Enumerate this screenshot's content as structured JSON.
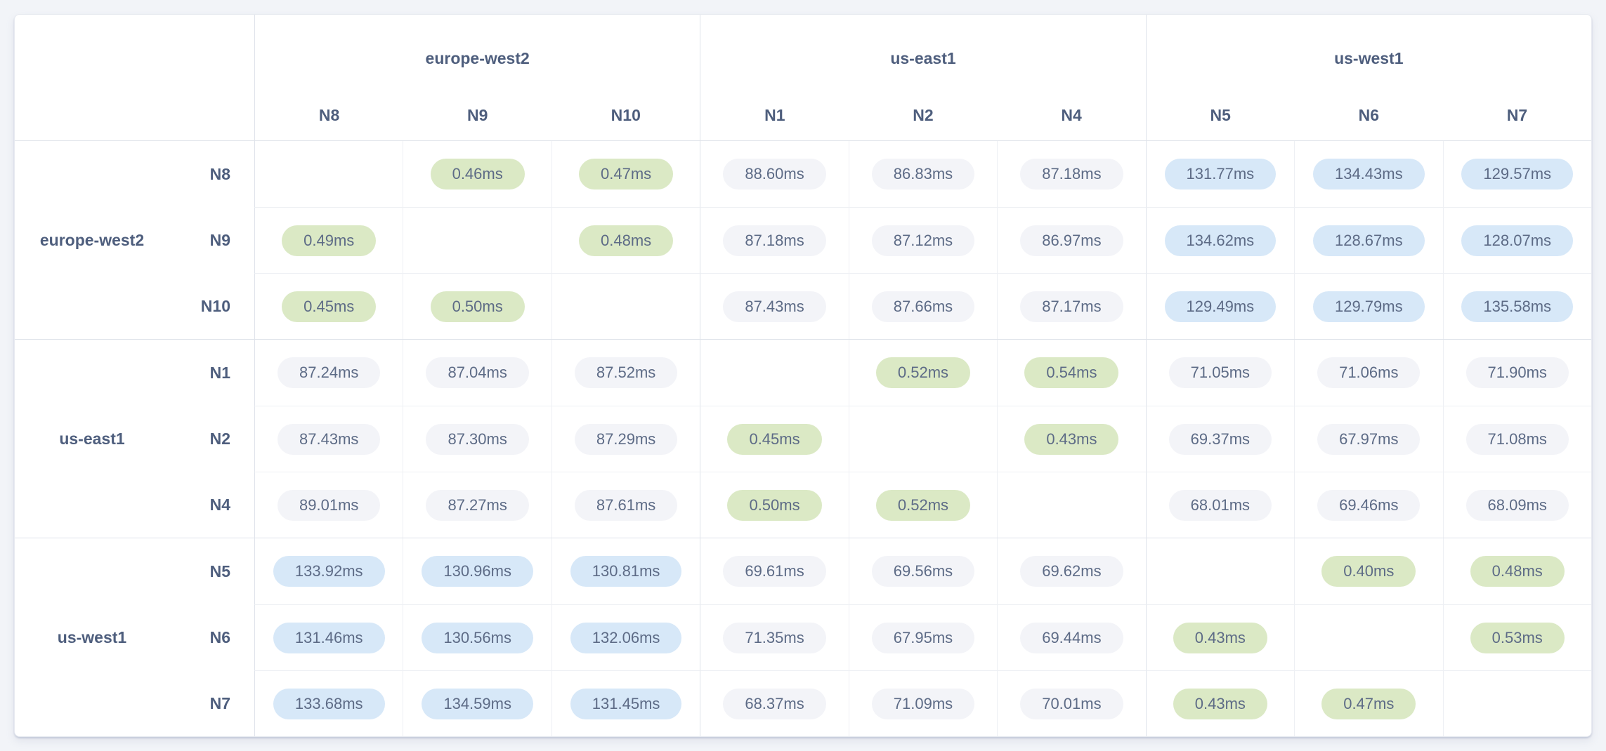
{
  "colors": {
    "local_pill": "#dbe9c5",
    "standard_pill": "#f3f4f8",
    "high_pill": "#d7e8f8",
    "value_text": "#5d6b86",
    "label_text": "#4e5e7d",
    "page_background": "#f2f4f8",
    "grid_line": "#eef0f4",
    "group_line": "#dfe3ea"
  },
  "columns": {
    "groups": [
      {
        "region": "europe-west2",
        "nodes": [
          "N8",
          "N9",
          "N10"
        ]
      },
      {
        "region": "us-east1",
        "nodes": [
          "N1",
          "N2",
          "N4"
        ]
      },
      {
        "region": "us-west1",
        "nodes": [
          "N5",
          "N6",
          "N7"
        ]
      }
    ]
  },
  "row_groups": [
    {
      "region": "europe-west2",
      "rows": [
        {
          "node": "N8",
          "cells": [
            null,
            {
              "text": "0.46ms",
              "level": "local"
            },
            {
              "text": "0.47ms",
              "level": "local"
            },
            {
              "text": "88.60ms",
              "level": "standard"
            },
            {
              "text": "86.83ms",
              "level": "standard"
            },
            {
              "text": "87.18ms",
              "level": "standard"
            },
            {
              "text": "131.77ms",
              "level": "high"
            },
            {
              "text": "134.43ms",
              "level": "high"
            },
            {
              "text": "129.57ms",
              "level": "high"
            }
          ]
        },
        {
          "node": "N9",
          "cells": [
            {
              "text": "0.49ms",
              "level": "local"
            },
            null,
            {
              "text": "0.48ms",
              "level": "local"
            },
            {
              "text": "87.18ms",
              "level": "standard"
            },
            {
              "text": "87.12ms",
              "level": "standard"
            },
            {
              "text": "86.97ms",
              "level": "standard"
            },
            {
              "text": "134.62ms",
              "level": "high"
            },
            {
              "text": "128.67ms",
              "level": "high"
            },
            {
              "text": "128.07ms",
              "level": "high"
            }
          ]
        },
        {
          "node": "N10",
          "cells": [
            {
              "text": "0.45ms",
              "level": "local"
            },
            {
              "text": "0.50ms",
              "level": "local"
            },
            null,
            {
              "text": "87.43ms",
              "level": "standard"
            },
            {
              "text": "87.66ms",
              "level": "standard"
            },
            {
              "text": "87.17ms",
              "level": "standard"
            },
            {
              "text": "129.49ms",
              "level": "high"
            },
            {
              "text": "129.79ms",
              "level": "high"
            },
            {
              "text": "135.58ms",
              "level": "high"
            }
          ]
        }
      ]
    },
    {
      "region": "us-east1",
      "rows": [
        {
          "node": "N1",
          "cells": [
            {
              "text": "87.24ms",
              "level": "standard"
            },
            {
              "text": "87.04ms",
              "level": "standard"
            },
            {
              "text": "87.52ms",
              "level": "standard"
            },
            null,
            {
              "text": "0.52ms",
              "level": "local"
            },
            {
              "text": "0.54ms",
              "level": "local"
            },
            {
              "text": "71.05ms",
              "level": "standard"
            },
            {
              "text": "71.06ms",
              "level": "standard"
            },
            {
              "text": "71.90ms",
              "level": "standard"
            }
          ]
        },
        {
          "node": "N2",
          "cells": [
            {
              "text": "87.43ms",
              "level": "standard"
            },
            {
              "text": "87.30ms",
              "level": "standard"
            },
            {
              "text": "87.29ms",
              "level": "standard"
            },
            {
              "text": "0.45ms",
              "level": "local"
            },
            null,
            {
              "text": "0.43ms",
              "level": "local"
            },
            {
              "text": "69.37ms",
              "level": "standard"
            },
            {
              "text": "67.97ms",
              "level": "standard"
            },
            {
              "text": "71.08ms",
              "level": "standard"
            }
          ]
        },
        {
          "node": "N4",
          "cells": [
            {
              "text": "89.01ms",
              "level": "standard"
            },
            {
              "text": "87.27ms",
              "level": "standard"
            },
            {
              "text": "87.61ms",
              "level": "standard"
            },
            {
              "text": "0.50ms",
              "level": "local"
            },
            {
              "text": "0.52ms",
              "level": "local"
            },
            null,
            {
              "text": "68.01ms",
              "level": "standard"
            },
            {
              "text": "69.46ms",
              "level": "standard"
            },
            {
              "text": "68.09ms",
              "level": "standard"
            }
          ]
        }
      ]
    },
    {
      "region": "us-west1",
      "rows": [
        {
          "node": "N5",
          "cells": [
            {
              "text": "133.92ms",
              "level": "high"
            },
            {
              "text": "130.96ms",
              "level": "high"
            },
            {
              "text": "130.81ms",
              "level": "high"
            },
            {
              "text": "69.61ms",
              "level": "standard"
            },
            {
              "text": "69.56ms",
              "level": "standard"
            },
            {
              "text": "69.62ms",
              "level": "standard"
            },
            null,
            {
              "text": "0.40ms",
              "level": "local"
            },
            {
              "text": "0.48ms",
              "level": "local"
            }
          ]
        },
        {
          "node": "N6",
          "cells": [
            {
              "text": "131.46ms",
              "level": "high"
            },
            {
              "text": "130.56ms",
              "level": "high"
            },
            {
              "text": "132.06ms",
              "level": "high"
            },
            {
              "text": "71.35ms",
              "level": "standard"
            },
            {
              "text": "67.95ms",
              "level": "standard"
            },
            {
              "text": "69.44ms",
              "level": "standard"
            },
            {
              "text": "0.43ms",
              "level": "local"
            },
            null,
            {
              "text": "0.53ms",
              "level": "local"
            }
          ]
        },
        {
          "node": "N7",
          "cells": [
            {
              "text": "133.68ms",
              "level": "high"
            },
            {
              "text": "134.59ms",
              "level": "high"
            },
            {
              "text": "131.45ms",
              "level": "high"
            },
            {
              "text": "68.37ms",
              "level": "standard"
            },
            {
              "text": "71.09ms",
              "level": "standard"
            },
            {
              "text": "70.01ms",
              "level": "standard"
            },
            {
              "text": "0.43ms",
              "level": "local"
            },
            {
              "text": "0.47ms",
              "level": "local"
            },
            null
          ]
        }
      ]
    }
  ]
}
